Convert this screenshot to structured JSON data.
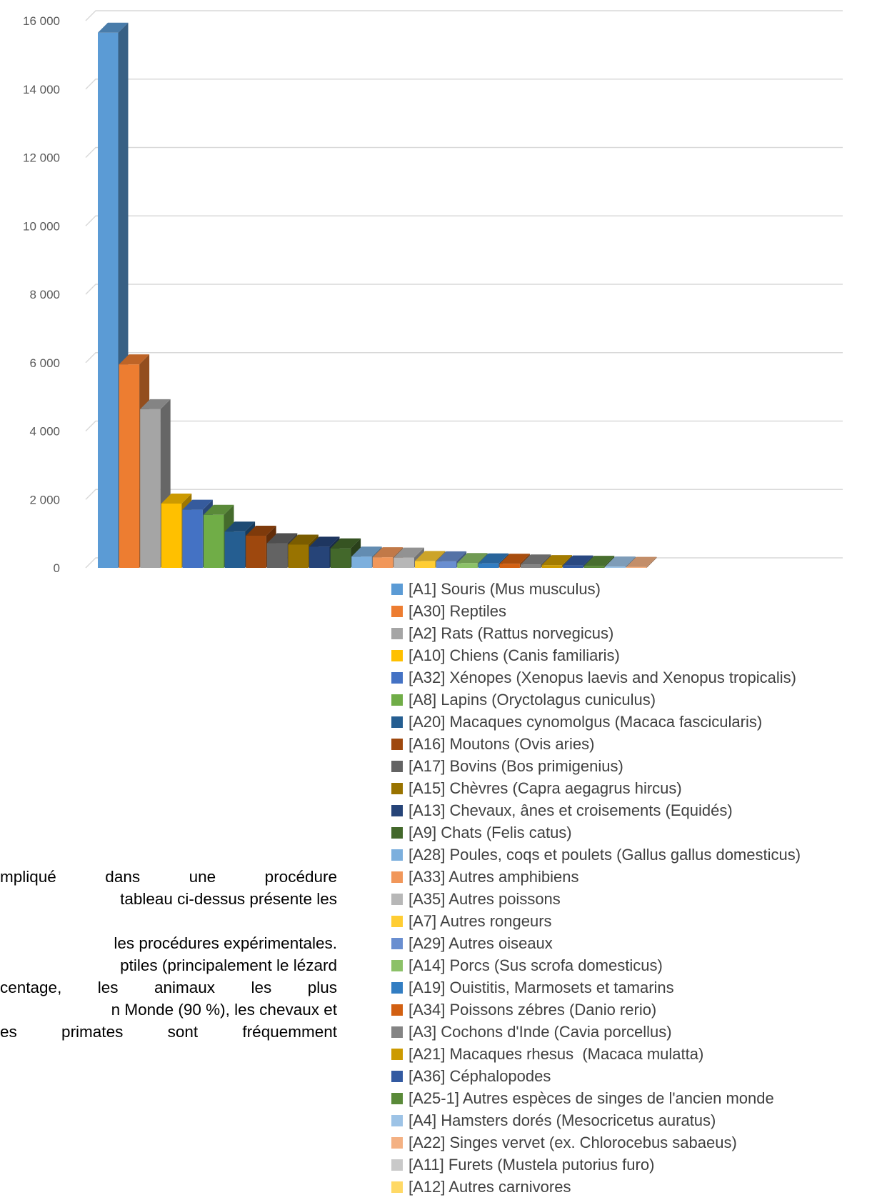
{
  "chart_data": {
    "type": "bar",
    "style": "3d-column",
    "ylim": [
      0,
      16000
    ],
    "y_ticks": [
      "0",
      "2 000",
      "4 000",
      "6 000",
      "8 000",
      "10 000",
      "12 000",
      "14 000",
      "16 000"
    ],
    "y_tick_values": [
      0,
      2000,
      4000,
      6000,
      8000,
      10000,
      12000,
      14000,
      16000
    ],
    "grid": true,
    "legend_position": "bottom-right",
    "series": [
      {
        "name": "[A1] Souris (Mus musculus)",
        "value": 15650,
        "color": "#5B9BD5"
      },
      {
        "name": "[A30] Reptiles",
        "value": 5950,
        "color": "#ED7D31"
      },
      {
        "name": "[A2] Rats (Rattus norvegicus)",
        "value": 4640,
        "color": "#A5A5A5"
      },
      {
        "name": "[A10] Chiens (Canis familiaris)",
        "value": 1880,
        "color": "#FFC000"
      },
      {
        "name": "[A32] Xénopes (Xenopus laevis and Xenopus tropicalis)",
        "value": 1700,
        "color": "#4472C4"
      },
      {
        "name": "[A8] Lapins (Oryctolagus cuniculus)",
        "value": 1550,
        "color": "#70AD47"
      },
      {
        "name": "[A20] Macaques cynomolgus (Macaca fascicularis)",
        "value": 1060,
        "color": "#255E91"
      },
      {
        "name": "[A16] Moutons (Ovis aries)",
        "value": 940,
        "color": "#9E480E"
      },
      {
        "name": "[A17] Bovins (Bos primigenius)",
        "value": 720,
        "color": "#636363"
      },
      {
        "name": "[A15] Chèvres (Capra aegagrus hircus)",
        "value": 680,
        "color": "#997300"
      },
      {
        "name": "[A13] Chevaux, ânes et croisements (Equidés)",
        "value": 620,
        "color": "#264478"
      },
      {
        "name": "[A9] Chats (Felis catus)",
        "value": 570,
        "color": "#43682B"
      },
      {
        "name": "[A28] Poules, coqs et poulets (Gallus gallus domesticus)",
        "value": 330,
        "color": "#7CAFDD"
      },
      {
        "name": "[A33] Autres amphibiens",
        "value": 310,
        "color": "#F1975A"
      },
      {
        "name": "[A35] Autres poissons",
        "value": 300,
        "color": "#B7B7B7"
      },
      {
        "name": "[A7] Autres rongeurs",
        "value": 200,
        "color": "#FFCD33"
      },
      {
        "name": "[A29] Autres oiseaux",
        "value": 190,
        "color": "#698ED0"
      },
      {
        "name": "[A14] Porcs (Sus scrofa domesticus)",
        "value": 140,
        "color": "#8CC168"
      },
      {
        "name": "[A19] Ouistitis, Marmosets et tamarins",
        "value": 130,
        "color": "#327DC2"
      },
      {
        "name": "[A34] Poissons zébres (Danio rerio)",
        "value": 120,
        "color": "#D26012"
      },
      {
        "name": "[A3] Cochons d'Inde (Cavia porcellus)",
        "value": 100,
        "color": "#848484"
      },
      {
        "name": "[A21] Macaques rhesus  (Macaca mulatta)",
        "value": 80,
        "color": "#CC9A00"
      },
      {
        "name": "[A36] Céphalopodes",
        "value": 70,
        "color": "#335AA1"
      },
      {
        "name": "[A25-1] Autres espèces de singes de l'ancien monde",
        "value": 60,
        "color": "#5A8A39"
      },
      {
        "name": "[A4] Hamsters dorés (Mesocricetus auratus)",
        "value": 40,
        "color": "#9DC3E6"
      },
      {
        "name": "[A22] Singes vervet (ex. Chlorocebus sabaeus)",
        "value": 30,
        "color": "#F4B183"
      },
      {
        "name": "[A11] Furets (Mustela putorius furo)",
        "value": 0,
        "color": "#C9C9C9"
      },
      {
        "name": "[A12] Autres carnivores",
        "value": 0,
        "color": "#FFD966"
      }
    ]
  },
  "body_text": {
    "lines": [
      "mpliqué dans une procédure",
      "tableau ci-dessus présente les",
      "",
      "les procédures expérimentales.",
      "ptiles (principalement le lézard",
      "centage, les animaux les plus",
      "n Monde (90 %), les chevaux et",
      "es primates sont fréquemment"
    ]
  }
}
